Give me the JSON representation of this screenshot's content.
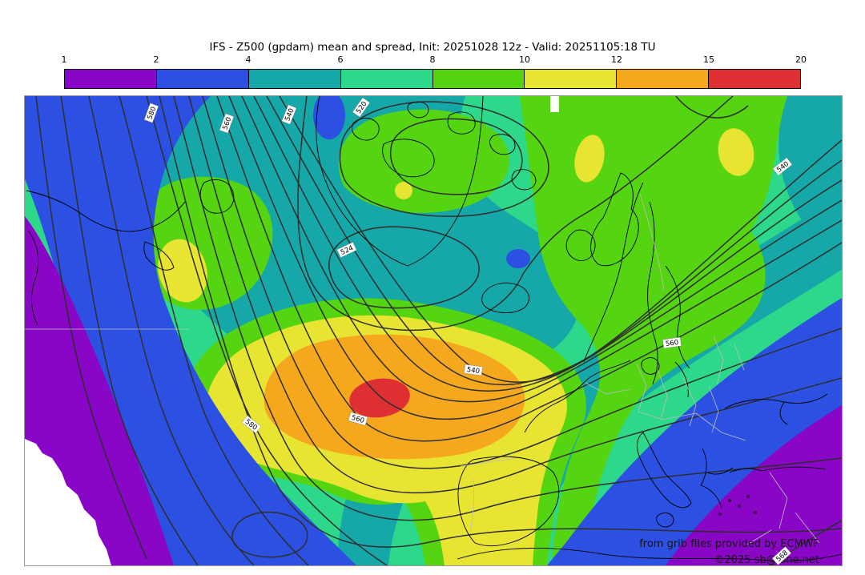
{
  "header": {
    "title": "IFS - Z500 (gpdam) mean and spread, Init: 20251028 12z - Valid: 20251105:18 TU"
  },
  "colorbar": {
    "tick_labels": [
      "1",
      "2",
      "4",
      "6",
      "8",
      "10",
      "12",
      "15",
      "20"
    ],
    "segment_ranges": [
      "1-2",
      "2-4",
      "4-6",
      "6-8",
      "8-10",
      "10-12",
      "12-15",
      "15-20"
    ],
    "segment_colors": [
      "#8A06C6",
      "#2B50E2",
      "#16A8A8",
      "#2ED88A",
      "#55D411",
      "#E8E432",
      "#F5A81E",
      "#DE2F32"
    ]
  },
  "map": {
    "contour_labels": [
      {
        "value": "580"
      },
      {
        "value": "560"
      },
      {
        "value": "540"
      },
      {
        "value": "520"
      },
      {
        "value": "524"
      },
      {
        "value": "540"
      },
      {
        "value": "560"
      },
      {
        "value": "580"
      },
      {
        "value": "540"
      },
      {
        "value": "560"
      },
      {
        "value": "568"
      }
    ],
    "credit1": "from grib files provided by ECMWF",
    "credit2": "©2025 sb@ione.net"
  },
  "chart_data": {
    "type": "heatmap",
    "title": "IFS - Z500 (gpdam) mean and spread, Init: 20251028 12z - Valid: 20251105:18 TU",
    "model": "IFS",
    "variable": "Z500 geopotential height (gpdam): ensemble mean contours with ensemble spread shading",
    "init": "20251028 12z",
    "valid": "20251105:18 TU",
    "region": "North America / North Atlantic / Europe",
    "spread_scale_levels": [
      1,
      2,
      4,
      6,
      8,
      10,
      12,
      15,
      20
    ],
    "spread_scale_colors": [
      "#8A06C6",
      "#2B50E2",
      "#16A8A8",
      "#2ED88A",
      "#55D411",
      "#E8E432",
      "#F5A81E",
      "#DE2F32"
    ],
    "contour_interval_gpdam": 4,
    "labeled_contours_gpdam": [
      520,
      524,
      540,
      560,
      568,
      580
    ],
    "features": [
      "spread maximum 15-20 (red) in central North Atlantic near 45N, surrounded by 12-15 orange and 10-12 yellow lobe extending to Iberia",
      "low spread 1-2 (purple) along US east coast / subtropics and over eastern Mediterranean - Middle East",
      "secondary yellow spread maxima near Newfoundland, Norwegian Sea and northern Scandinavia",
      "deep trough in mean Z500 over mid-Atlantic with closed lows near Greenland and the Canadian Arctic"
    ]
  }
}
